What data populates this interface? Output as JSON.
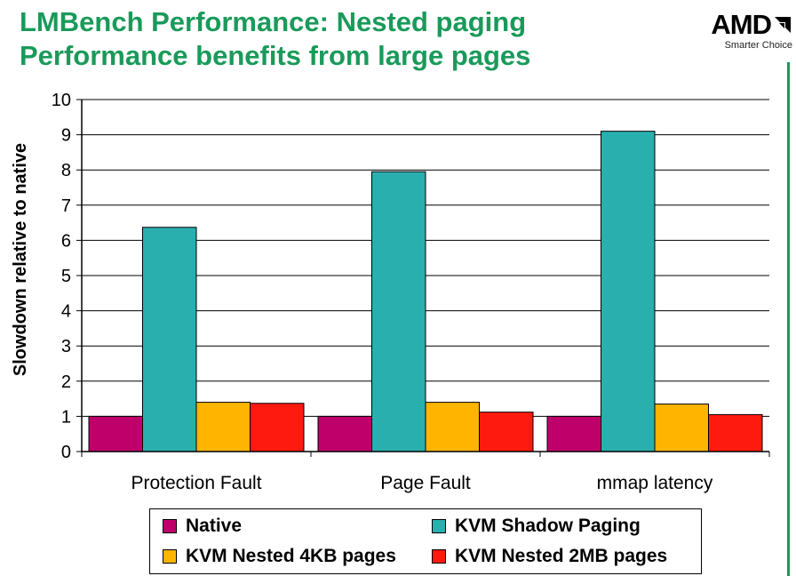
{
  "header": {
    "title_line1": "LMBench Performance: Nested paging",
    "title_line2": "Performance benefits from large pages"
  },
  "logo": {
    "word": "AMD",
    "tagline": "Smarter Choice",
    "accent_color": "#1a9a5a"
  },
  "chart_data": {
    "type": "bar",
    "title": "",
    "xlabel": "",
    "ylabel": "Slowdown relative to native",
    "ylim": [
      0,
      10
    ],
    "yticks": [
      0,
      1,
      2,
      3,
      4,
      5,
      6,
      7,
      8,
      9,
      10
    ],
    "grid": true,
    "legend_position": "bottom",
    "categories": [
      "Protection Fault",
      "Page Fault",
      "mmap latency"
    ],
    "series": [
      {
        "name": "Native",
        "color": "#c0006a",
        "values": [
          1.0,
          1.0,
          1.0
        ]
      },
      {
        "name": "KVM Shadow Paging",
        "color": "#2aafaf",
        "values": [
          6.37,
          7.95,
          9.1
        ]
      },
      {
        "name": "KVM Nested 4KB pages",
        "color": "#ffb400",
        "values": [
          1.4,
          1.4,
          1.35
        ]
      },
      {
        "name": "KVM Nested 2MB pages",
        "color": "#ff1a10",
        "values": [
          1.37,
          1.12,
          1.05
        ]
      }
    ]
  }
}
